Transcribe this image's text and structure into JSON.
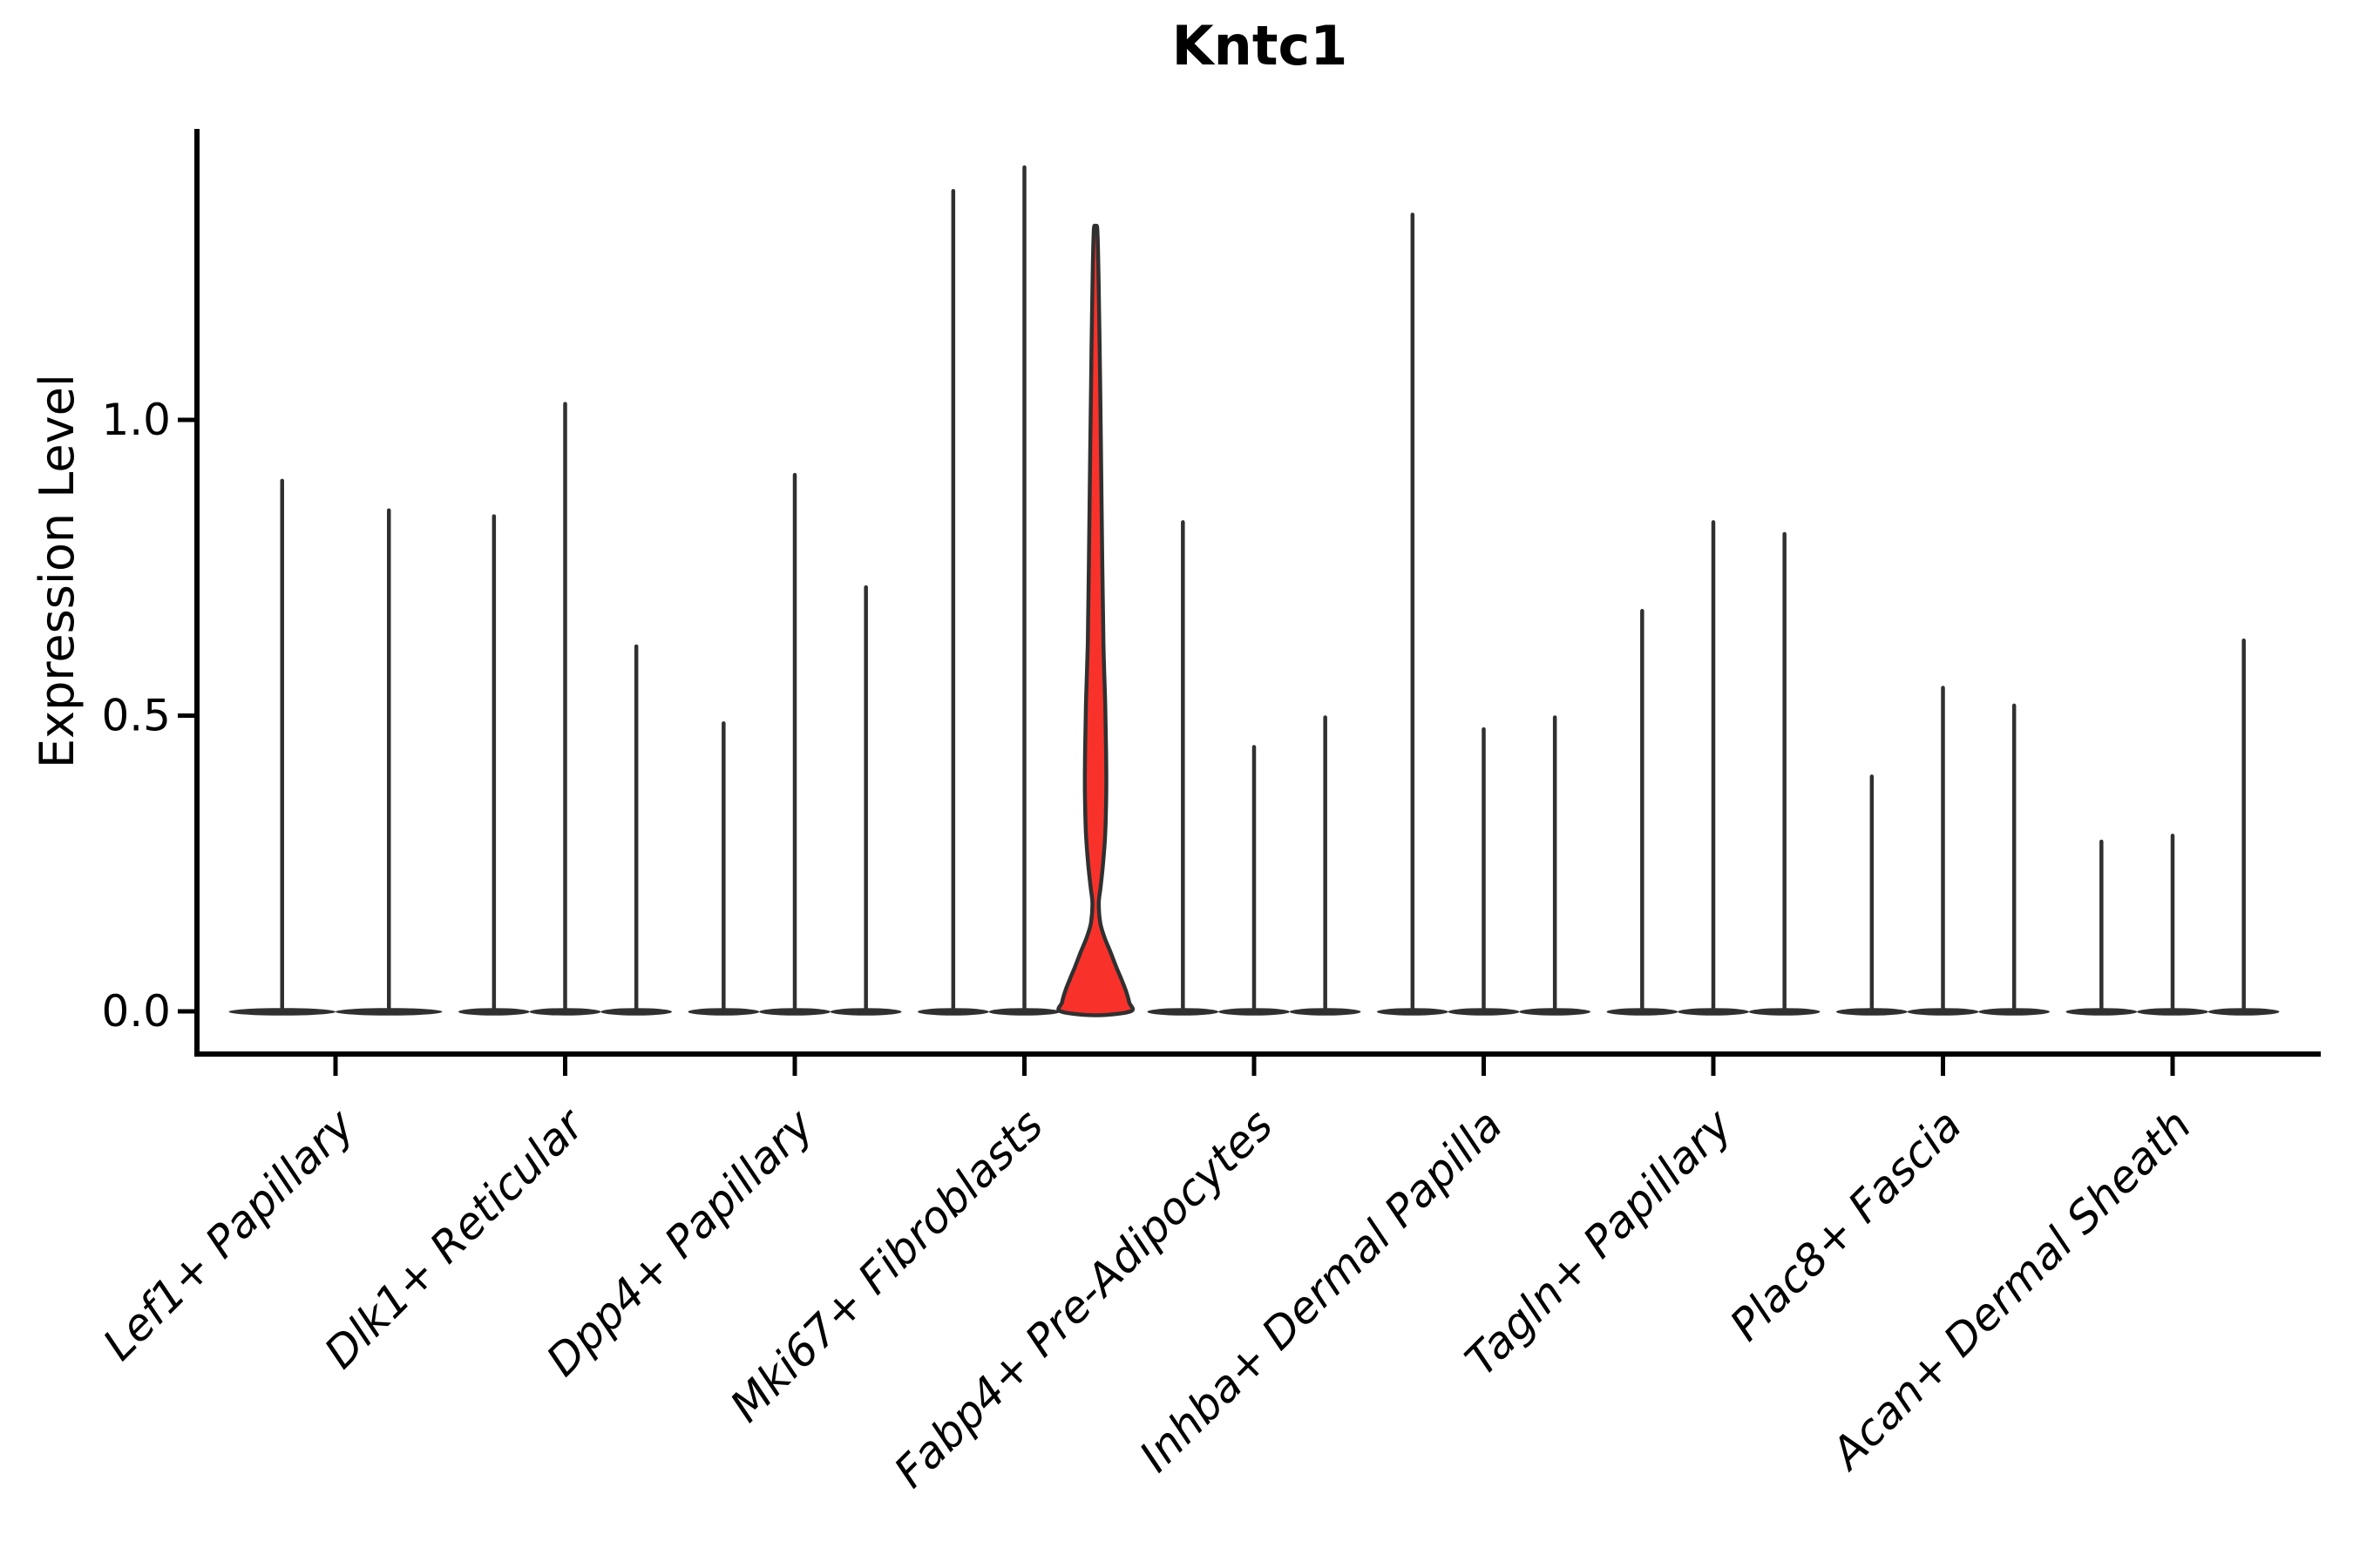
{
  "figure": {
    "title": "Kntc1"
  },
  "chart_data": {
    "type": "violin",
    "title": "Kntc1",
    "xlabel": "",
    "ylabel": "Expression Level",
    "ytick_labels": [
      "0.0",
      "0.5",
      "1.0"
    ],
    "ytick_values": [
      0.0,
      0.5,
      1.0
    ],
    "ylim": [
      -0.07,
      1.5
    ],
    "grid": false,
    "legend": "none",
    "categories": [
      "Lef1+ Papillary",
      "Dlk1+ Reticular",
      "Dpp4+ Papillary",
      "Mki67+ Fibroblasts",
      "Fabp4+ Pre-Adipocytes",
      "Inhba+ Dermal Papilla",
      "Tagln+ Papillary",
      "Plac8+ Fascia",
      "Acan+ Dermal Sheath"
    ],
    "groups": [
      {
        "label": "Lef1+ Papillary",
        "violins": [
          {
            "max_expression": 0.9
          },
          {
            "max_expression": 0.85
          }
        ]
      },
      {
        "label": "Dlk1+ Reticular",
        "violins": [
          {
            "max_expression": 0.84
          },
          {
            "max_expression": 1.03
          },
          {
            "max_expression": 0.62
          }
        ]
      },
      {
        "label": "Dpp4+ Papillary",
        "violins": [
          {
            "max_expression": 0.49
          },
          {
            "max_expression": 0.91
          },
          {
            "max_expression": 0.72
          }
        ]
      },
      {
        "label": "Mki67+ Fibroblasts",
        "violins": [
          {
            "max_expression": 1.39
          },
          {
            "max_expression": 1.43
          },
          {
            "max_expression": 1.32,
            "highlighted": true
          }
        ]
      },
      {
        "label": "Fabp4+ Pre-Adipocytes",
        "violins": [
          {
            "max_expression": 0.83
          },
          {
            "max_expression": 0.45
          },
          {
            "max_expression": 0.5
          }
        ]
      },
      {
        "label": "Inhba+ Dermal Papilla",
        "violins": [
          {
            "max_expression": 1.35
          },
          {
            "max_expression": 0.48
          },
          {
            "max_expression": 0.5
          }
        ]
      },
      {
        "label": "Tagln+ Papillary",
        "violins": [
          {
            "max_expression": 0.68
          },
          {
            "max_expression": 0.83
          },
          {
            "max_expression": 0.81
          }
        ]
      },
      {
        "label": "Plac8+ Fascia",
        "violins": [
          {
            "max_expression": 0.4
          },
          {
            "max_expression": 0.55
          },
          {
            "max_expression": 0.52
          }
        ]
      },
      {
        "label": "Acan+ Dermal Sheath",
        "violins": [
          {
            "max_expression": 0.29
          },
          {
            "max_expression": 0.3
          },
          {
            "max_expression": 0.63
          }
        ]
      }
    ],
    "highlighted_violin": {
      "group": "Mki67+ Fibroblasts",
      "index_in_group": 2,
      "max_expression": 1.32,
      "waist_level": 0.18,
      "profile": [
        [
          1.32,
          0.05
        ],
        [
          1.22,
          0.09
        ],
        [
          1.05,
          0.13
        ],
        [
          0.9,
          0.16
        ],
        [
          0.75,
          0.19
        ],
        [
          0.62,
          0.22
        ],
        [
          0.52,
          0.27
        ],
        [
          0.44,
          0.295
        ],
        [
          0.37,
          0.3
        ],
        [
          0.3,
          0.27
        ],
        [
          0.25,
          0.21
        ],
        [
          0.21,
          0.14
        ],
        [
          0.183,
          0.09
        ],
        [
          0.15,
          0.13
        ],
        [
          0.125,
          0.25
        ],
        [
          0.1,
          0.42
        ],
        [
          0.075,
          0.58
        ],
        [
          0.055,
          0.72
        ],
        [
          0.035,
          0.85
        ],
        [
          0.015,
          0.945
        ],
        [
          0.0,
          0.98
        ]
      ]
    },
    "colors": {
      "violin_outline": "#303030",
      "highlight_fill": "#f8322b",
      "axis": "#000000",
      "text": "#000000",
      "background": "#ffffff"
    }
  }
}
